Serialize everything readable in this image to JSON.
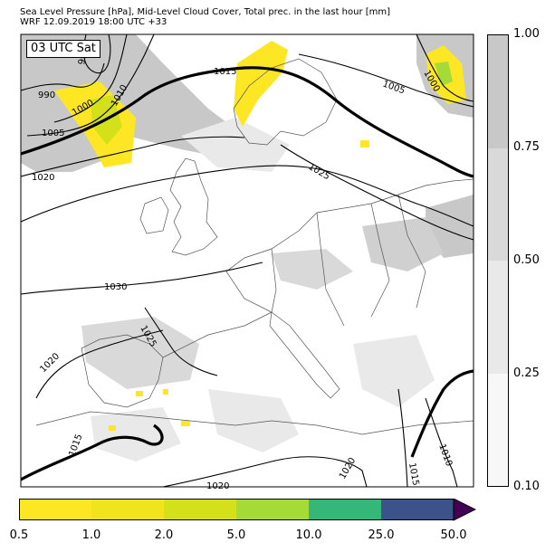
{
  "title": {
    "line1": "Sea Level Pressure [hPa], Mid-Level Cloud Cover, Total prec. in the last hour [mm]",
    "line2": "WRF 12.09.2019 18:00 UTC +33"
  },
  "map": {
    "time_label": "03 UTC Sat",
    "isobar_labels": [
      "995",
      "990",
      "1000",
      "1005",
      "1010",
      "1015",
      "1020",
      "1025",
      "1030",
      "1005",
      "1000",
      "1025",
      "1020",
      "1015",
      "1020",
      "1020",
      "1015",
      "1010"
    ],
    "cloud_colors": [
      "#f7f7f7",
      "#e9e9e9",
      "#d9d9d9",
      "#c8c8c8"
    ],
    "coast_color": "#555555",
    "isobar_color": "#000000"
  },
  "cloud_colorbar": {
    "ticks": [
      "1.00",
      "0.75",
      "0.50",
      "0.25",
      "0.10"
    ],
    "levels": [
      0.1,
      0.25,
      0.5,
      0.75,
      1.0
    ],
    "colors": [
      "#f7f7f7",
      "#e9e9e9",
      "#d9d9d9",
      "#c8c8c8"
    ]
  },
  "precip_colorbar": {
    "ticks": [
      "0.5",
      "1.0",
      "2.0",
      "5.0",
      "10.0",
      "25.0",
      "50.0"
    ],
    "colors": [
      "#fde725",
      "#f0e41f",
      "#d3e01a",
      "#a5db36",
      "#35b779",
      "#3b528b",
      "#440154"
    ]
  }
}
